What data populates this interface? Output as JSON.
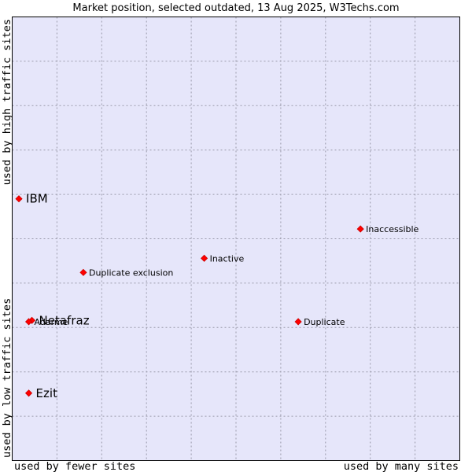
{
  "chart_data": {
    "type": "scatter",
    "title": "Market position, selected outdated, 13 Aug 2025, W3Techs.com",
    "xlabel_left": "used by fewer sites",
    "xlabel_right": "used by many sites",
    "ylabel_bottom": "used by low traffic sites",
    "ylabel_top": "used by high traffic sites",
    "xlim": [
      0,
      100
    ],
    "ylim": [
      0,
      100
    ],
    "grid": true,
    "colors": {
      "plot_background": "#e6e6fa",
      "grid": "#9a9aaa",
      "marker": "#ff0000",
      "marker_edge": "#cc0000",
      "border": "#000000"
    },
    "points": [
      {
        "name": "IBM",
        "x": 1.5,
        "y": 59,
        "emphasis": true
      },
      {
        "name": "Inaccessible",
        "x": 77.8,
        "y": 52.2,
        "emphasis": false
      },
      {
        "name": "Inactive",
        "x": 42.9,
        "y": 45.6,
        "emphasis": false
      },
      {
        "name": "Duplicate exclusion",
        "x": 15.9,
        "y": 42.4,
        "emphasis": false
      },
      {
        "name": "Netafraz",
        "x": 4.4,
        "y": 31.6,
        "emphasis": true
      },
      {
        "name": "Adarme",
        "x": 3.7,
        "y": 31.3,
        "emphasis": false
      },
      {
        "name": "Duplicate",
        "x": 63.9,
        "y": 31.3,
        "emphasis": false
      },
      {
        "name": "Ezit",
        "x": 3.7,
        "y": 15.2,
        "emphasis": true
      }
    ]
  }
}
